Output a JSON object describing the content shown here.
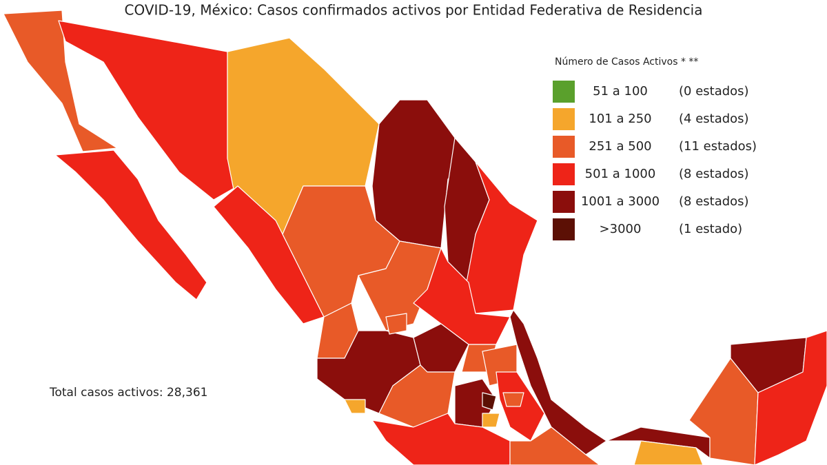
{
  "title": "COVID-19, México: Casos confirmados activos por Entidad Federativa de Residencia",
  "legend": {
    "title": "Número de Casos Activos * **",
    "items": [
      {
        "range": "51 a 100",
        "count": "(0 estados)",
        "color": "#5aa02c"
      },
      {
        "range": "101 a 250",
        "count": "(4 estados)",
        "color": "#f5a62c"
      },
      {
        "range": "251 a 500",
        "count": "(11 estados)",
        "color": "#e85a28"
      },
      {
        "range": "501 a 1000",
        "count": "(8 estados)",
        "color": "#ee2418"
      },
      {
        "range": "1001 a 3000",
        "count": "(8 estados)",
        "color": "#8b0e0c"
      },
      {
        "range": ">3000",
        "count": "(1 estado)",
        "color": "#5c1005"
      }
    ]
  },
  "total": "Total casos activos: 28,361"
}
